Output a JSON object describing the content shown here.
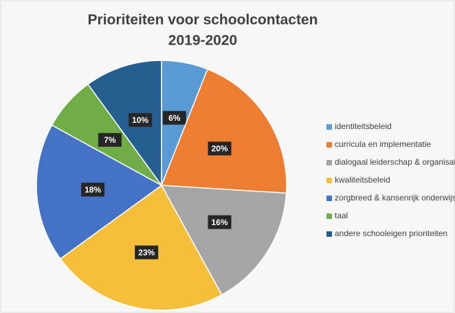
{
  "chart_data": {
    "type": "pie",
    "title_lines": [
      "Prioriteiten voor schoolcontacten",
      "2019-2020"
    ],
    "categories": [
      "identiteitsbeleid",
      "curricula en implementatie",
      "dialogaal leiderschap & organisatie",
      "kwaliteitsbeleid",
      "zorgbreed & kansenrijk onderwijs",
      "taal",
      "andere schooleigen prioriteiten"
    ],
    "values": [
      6,
      20,
      16,
      23,
      18,
      7,
      10
    ],
    "value_labels": [
      "6%",
      "20%",
      "16%",
      "23%",
      "18%",
      "7%",
      "10%"
    ],
    "colors": [
      "#5b9bd5",
      "#ed7d31",
      "#a5a5a5",
      "#f5bf3c",
      "#4472c4",
      "#70ad47",
      "#255e91"
    ],
    "legend": "right"
  }
}
